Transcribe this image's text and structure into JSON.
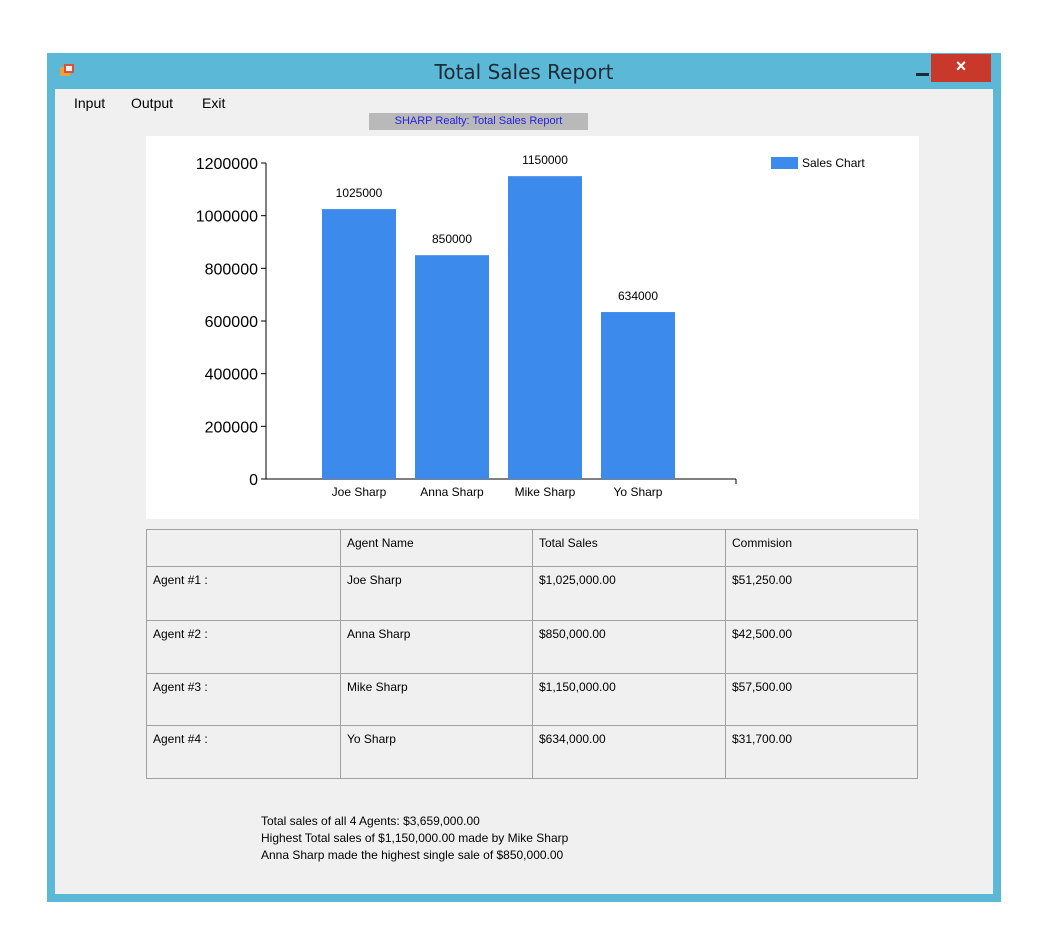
{
  "window": {
    "title": "Total Sales Report",
    "close_glyph": "×"
  },
  "menu": {
    "items": [
      "Input",
      "Output",
      "Exit"
    ]
  },
  "chart_data": {
    "type": "bar",
    "title": "SHARP Realty: Total Sales Report",
    "categories": [
      "Joe Sharp",
      "Anna Sharp",
      "Mike Sharp",
      "Yo Sharp"
    ],
    "series": [
      {
        "name": "Sales Chart",
        "values": [
          1025000,
          850000,
          1150000,
          634000
        ],
        "color": "#3c8aeb"
      }
    ],
    "ylim": [
      0,
      1200000
    ],
    "yticks": [
      "0",
      "200000",
      "400000",
      "600000",
      "800000",
      "1000000",
      "1200000"
    ],
    "data_labels": [
      "1025000",
      "850000",
      "1150000",
      "634000"
    ],
    "legend_position": "top-right",
    "grid": false
  },
  "table": {
    "headers": [
      "",
      "Agent Name",
      "Total Sales",
      "Commision"
    ],
    "rows": [
      [
        "Agent #1 :",
        "Joe Sharp",
        "$1,025,000.00",
        "$51,250.00"
      ],
      [
        "Agent #2 :",
        "Anna Sharp",
        "$850,000.00",
        "$42,500.00"
      ],
      [
        "Agent #3 :",
        "Mike Sharp",
        "$1,150,000.00",
        "$57,500.00"
      ],
      [
        "Agent #4 :",
        "Yo Sharp",
        "$634,000.00",
        "$31,700.00"
      ]
    ]
  },
  "summary": {
    "line1": "Total sales of all 4 Agents: $3,659,000.00",
    "line2": "Highest Total sales of $1,150,000.00 made by Mike Sharp",
    "line3": "Anna Sharp made the highest single sale of $850,000.00"
  },
  "icons": {
    "app": "app-icon",
    "minimize": "minimize-icon",
    "maximize": "maximize-icon",
    "close": "close-icon"
  }
}
